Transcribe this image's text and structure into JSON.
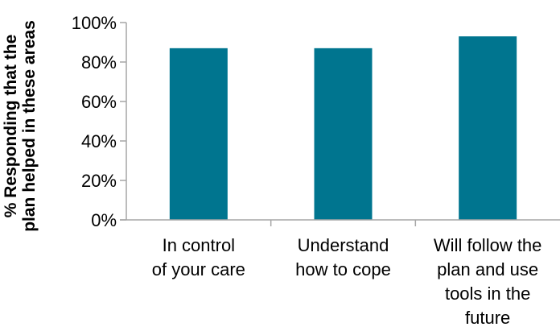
{
  "chart_data": {
    "type": "bar",
    "title": "",
    "xlabel": "",
    "ylabel_lines": [
      "% Responding that the",
      "plan helped in these areas"
    ],
    "categories": [
      [
        "In control",
        "of your care"
      ],
      [
        "Understand",
        "how to cope"
      ],
      [
        "Will follow the",
        "plan and use",
        "tools in the",
        "future"
      ]
    ],
    "values": [
      87,
      87,
      93
    ],
    "ylim": [
      0,
      100
    ],
    "yticks": [
      0,
      20,
      40,
      60,
      80,
      100
    ],
    "ytick_labels": [
      "0%",
      "20%",
      "40%",
      "60%",
      "80%",
      "100%"
    ],
    "grid": false,
    "legend": "none",
    "bar_color": "#00758F",
    "axis_color": "#A6A6A6"
  }
}
